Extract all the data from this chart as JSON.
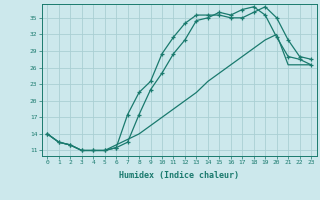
{
  "xlabel": "Humidex (Indice chaleur)",
  "background_color": "#cce8ec",
  "grid_color": "#aacfd4",
  "line_color": "#1a7a6e",
  "xlim": [
    -0.5,
    23.5
  ],
  "ylim": [
    10.0,
    37.5
  ],
  "yticks": [
    11,
    14,
    17,
    20,
    23,
    26,
    29,
    32,
    35
  ],
  "xticks": [
    0,
    1,
    2,
    3,
    4,
    5,
    6,
    7,
    8,
    9,
    10,
    11,
    12,
    13,
    14,
    15,
    16,
    17,
    18,
    19,
    20,
    21,
    22,
    23
  ],
  "series1_x": [
    0,
    1,
    2,
    3,
    4,
    5,
    6,
    7,
    8,
    9,
    10,
    11,
    12,
    13,
    14,
    15,
    16,
    17,
    18,
    19,
    20,
    21,
    22,
    23
  ],
  "series1_y": [
    14.0,
    12.5,
    12.0,
    11.0,
    11.0,
    11.0,
    11.5,
    12.5,
    17.5,
    22.0,
    25.0,
    28.5,
    31.0,
    34.5,
    35.0,
    36.0,
    35.5,
    36.5,
    37.0,
    35.5,
    31.5,
    28.0,
    27.5,
    26.5
  ],
  "series2_x": [
    0,
    1,
    2,
    3,
    4,
    5,
    6,
    7,
    8,
    9,
    10,
    11,
    12,
    13,
    14,
    15,
    16,
    17,
    18,
    19,
    20,
    21,
    22,
    23
  ],
  "series2_y": [
    14.0,
    12.5,
    12.0,
    11.0,
    11.0,
    11.0,
    11.5,
    17.5,
    21.5,
    23.5,
    28.5,
    31.5,
    34.0,
    35.5,
    35.5,
    35.5,
    35.0,
    35.0,
    36.0,
    37.0,
    35.0,
    31.0,
    28.0,
    27.5
  ],
  "series3_x": [
    0,
    1,
    2,
    3,
    4,
    5,
    6,
    7,
    8,
    9,
    10,
    11,
    12,
    13,
    14,
    15,
    16,
    17,
    18,
    19,
    20,
    21,
    22,
    23
  ],
  "series3_y": [
    14.0,
    12.5,
    12.0,
    11.0,
    11.0,
    11.0,
    12.0,
    13.0,
    14.0,
    15.5,
    17.0,
    18.5,
    20.0,
    21.5,
    23.5,
    25.0,
    26.5,
    28.0,
    29.5,
    31.0,
    32.0,
    26.5,
    26.5,
    26.5
  ]
}
